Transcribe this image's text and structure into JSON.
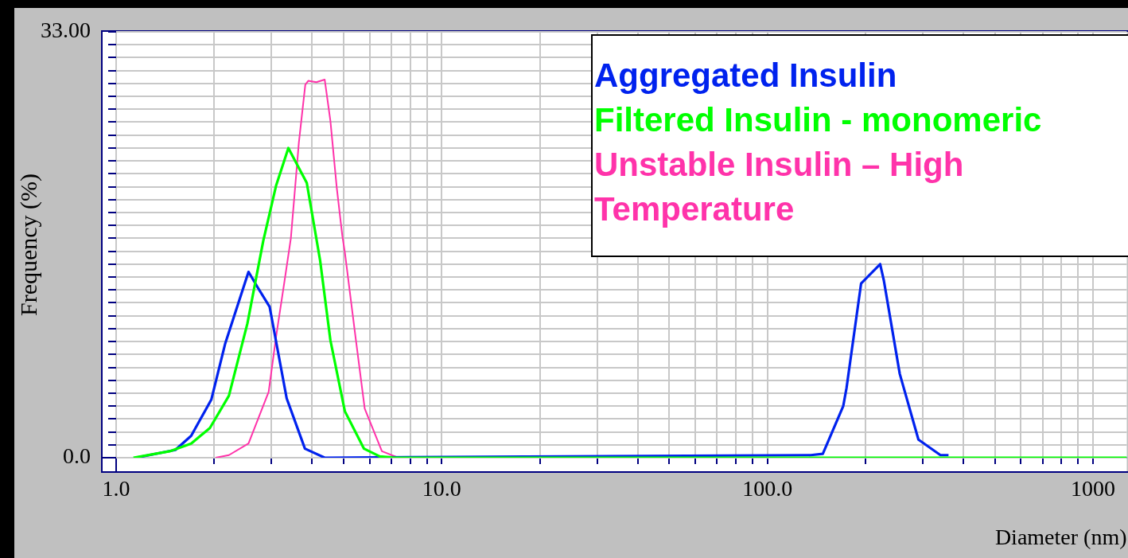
{
  "chart_data": {
    "type": "line",
    "xlabel": "Diameter (nm)",
    "ylabel": "Frequency (%)",
    "log": "x",
    "grid": true,
    "legend": "top right",
    "marker": "none",
    "line_style": "solid",
    "xlim": [
      1,
      1270
    ],
    "ylim": [
      0,
      33
    ],
    "xticks": [
      {
        "value": 1,
        "label": "1.0"
      },
      {
        "value": 2,
        "label": null
      },
      {
        "value": 3,
        "label": null
      },
      {
        "value": 4,
        "label": null
      },
      {
        "value": 5,
        "label": null
      },
      {
        "value": 6,
        "label": null
      },
      {
        "value": 7,
        "label": null
      },
      {
        "value": 8,
        "label": null
      },
      {
        "value": 9,
        "label": null
      },
      {
        "value": 10,
        "label": "10.0"
      },
      {
        "value": 20,
        "label": null
      },
      {
        "value": 30,
        "label": null
      },
      {
        "value": 40,
        "label": null
      },
      {
        "value": 50,
        "label": null
      },
      {
        "value": 60,
        "label": null
      },
      {
        "value": 70,
        "label": null
      },
      {
        "value": 80,
        "label": null
      },
      {
        "value": 90,
        "label": null
      },
      {
        "value": 100,
        "label": "100.0"
      },
      {
        "value": 200,
        "label": null
      },
      {
        "value": 300,
        "label": null
      },
      {
        "value": 400,
        "label": null
      },
      {
        "value": 500,
        "label": null
      },
      {
        "value": 600,
        "label": null
      },
      {
        "value": 700,
        "label": null
      },
      {
        "value": 800,
        "label": null
      },
      {
        "value": 900,
        "label": null
      },
      {
        "value": 1000,
        "label": "1000"
      }
    ],
    "yticks": [
      {
        "value": 0,
        "label": "0.0"
      },
      {
        "value": 1,
        "label": null
      },
      {
        "value": 2,
        "label": null
      },
      {
        "value": 3,
        "label": null
      },
      {
        "value": 4,
        "label": null
      },
      {
        "value": 5,
        "label": null
      },
      {
        "value": 6,
        "label": null
      },
      {
        "value": 7,
        "label": null
      },
      {
        "value": 8,
        "label": null
      },
      {
        "value": 9,
        "label": null
      },
      {
        "value": 10,
        "label": null
      },
      {
        "value": 11,
        "label": null
      },
      {
        "value": 12,
        "label": null
      },
      {
        "value": 13,
        "label": null
      },
      {
        "value": 14,
        "label": null
      },
      {
        "value": 15,
        "label": null
      },
      {
        "value": 16,
        "label": null
      },
      {
        "value": 17,
        "label": null
      },
      {
        "value": 18,
        "label": null
      },
      {
        "value": 19,
        "label": null
      },
      {
        "value": 20,
        "label": null
      },
      {
        "value": 21,
        "label": null
      },
      {
        "value": 22,
        "label": null
      },
      {
        "value": 23,
        "label": null
      },
      {
        "value": 24,
        "label": null
      },
      {
        "value": 25,
        "label": null
      },
      {
        "value": 26,
        "label": null
      },
      {
        "value": 27,
        "label": null
      },
      {
        "value": 28,
        "label": null
      },
      {
        "value": 29,
        "label": null
      },
      {
        "value": 30,
        "label": null
      },
      {
        "value": 31,
        "label": null
      },
      {
        "value": 32,
        "label": null
      },
      {
        "value": 33,
        "label": "33.00"
      }
    ],
    "series": [
      {
        "name": "Aggregated Insulin",
        "color": "#0022ee",
        "x": [
          1.15,
          1.52,
          1.7,
          1.96,
          2.16,
          2.55,
          2.72,
          2.96,
          3.34,
          3.8,
          4.37,
          136,
          148,
          171,
          175,
          194,
          222,
          228,
          255,
          291,
          340,
          360
        ],
        "values": [
          0,
          0.6,
          1.7,
          4.5,
          8.8,
          14.4,
          13.2,
          11.7,
          4.6,
          0.7,
          0,
          0.2,
          0.3,
          4,
          5.4,
          13.5,
          15,
          13.7,
          6.5,
          1.4,
          0.2,
          0.2
        ]
      },
      {
        "name": "Filtered Insulin - monomeric",
        "color": "#00ff00",
        "x": [
          1.13,
          1.46,
          1.7,
          1.94,
          2.22,
          2.53,
          2.83,
          3.1,
          3.38,
          3.85,
          4.23,
          4.55,
          5.04,
          5.77,
          6.45,
          7.2,
          1270
        ],
        "values": [
          0,
          0.5,
          1.1,
          2.3,
          4.8,
          10.4,
          16.8,
          21.1,
          24,
          21.3,
          15.3,
          9.1,
          3.6,
          0.7,
          0.1,
          0,
          0
        ]
      },
      {
        "name": "Unstable Insulin – High Temperature",
        "color": "#ff33aa",
        "x": [
          2.02,
          2.22,
          2.55,
          2.94,
          3.1,
          3.29,
          3.44,
          3.64,
          3.81,
          3.89,
          4.12,
          4.37,
          4.55,
          4.76,
          4.95,
          5.04,
          5.45,
          5.8,
          6.55,
          7.35
        ],
        "values": [
          0,
          0.2,
          1.1,
          5.1,
          9.4,
          13.7,
          17,
          24.4,
          28.9,
          29.2,
          29.1,
          29.3,
          26.1,
          20.9,
          17.2,
          15.9,
          9.1,
          3.8,
          0.5,
          0
        ]
      }
    ]
  }
}
